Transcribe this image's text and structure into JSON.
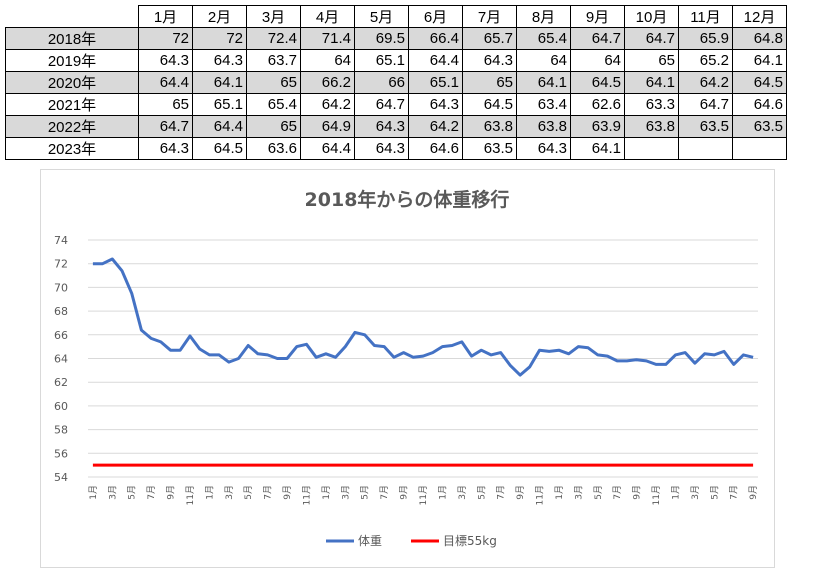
{
  "table": {
    "months": [
      "1月",
      "2月",
      "3月",
      "4月",
      "5月",
      "6月",
      "7月",
      "8月",
      "9月",
      "10月",
      "11月",
      "12月"
    ],
    "rows": [
      {
        "year": "2018年",
        "values": [
          "72",
          "72",
          "72.4",
          "71.4",
          "69.5",
          "66.4",
          "65.7",
          "65.4",
          "64.7",
          "64.7",
          "65.9",
          "64.8"
        ]
      },
      {
        "year": "2019年",
        "values": [
          "64.3",
          "64.3",
          "63.7",
          "64",
          "65.1",
          "64.4",
          "64.3",
          "64",
          "64",
          "65",
          "65.2",
          "64.1"
        ]
      },
      {
        "year": "2020年",
        "values": [
          "64.4",
          "64.1",
          "65",
          "66.2",
          "66",
          "65.1",
          "65",
          "64.1",
          "64.5",
          "64.1",
          "64.2",
          "64.5"
        ]
      },
      {
        "year": "2021年",
        "values": [
          "65",
          "65.1",
          "65.4",
          "64.2",
          "64.7",
          "64.3",
          "64.5",
          "63.4",
          "62.6",
          "63.3",
          "64.7",
          "64.6"
        ]
      },
      {
        "year": "2022年",
        "values": [
          "64.7",
          "64.4",
          "65",
          "64.9",
          "64.3",
          "64.2",
          "63.8",
          "63.8",
          "63.9",
          "63.8",
          "63.5",
          "63.5"
        ]
      },
      {
        "year": "2023年",
        "values": [
          "64.3",
          "64.5",
          "63.6",
          "64.4",
          "64.3",
          "64.6",
          "63.5",
          "64.3",
          "64.1",
          "",
          "",
          ""
        ]
      }
    ]
  },
  "chart_data": {
    "type": "line",
    "title": "2018年からの体重移行",
    "ylim": [
      54,
      74
    ],
    "yticks": [
      54,
      56,
      58,
      60,
      62,
      64,
      66,
      68,
      70,
      72,
      74
    ],
    "grid": true,
    "legend_position": "bottom",
    "x": [
      "1月",
      "2月",
      "3月",
      "4月",
      "5月",
      "6月",
      "7月",
      "8月",
      "9月",
      "10月",
      "11月",
      "12月",
      "1月",
      "2月",
      "3月",
      "4月",
      "5月",
      "6月",
      "7月",
      "8月",
      "9月",
      "10月",
      "11月",
      "12月",
      "1月",
      "2月",
      "3月",
      "4月",
      "5月",
      "6月",
      "7月",
      "8月",
      "9月",
      "10月",
      "11月",
      "12月",
      "1月",
      "2月",
      "3月",
      "4月",
      "5月",
      "6月",
      "7月",
      "8月",
      "9月",
      "10月",
      "11月",
      "12月",
      "1月",
      "2月",
      "3月",
      "4月",
      "5月",
      "6月",
      "7月",
      "8月",
      "9月",
      "10月",
      "11月",
      "12月",
      "1月",
      "2月",
      "3月",
      "4月",
      "5月",
      "6月",
      "7月",
      "8月",
      "9月"
    ],
    "series": [
      {
        "name": "体重",
        "color": "#4472c4",
        "values": [
          72,
          72,
          72.4,
          71.4,
          69.5,
          66.4,
          65.7,
          65.4,
          64.7,
          64.7,
          65.9,
          64.8,
          64.3,
          64.3,
          63.7,
          64,
          65.1,
          64.4,
          64.3,
          64,
          64,
          65,
          65.2,
          64.1,
          64.4,
          64.1,
          65,
          66.2,
          66,
          65.1,
          65,
          64.1,
          64.5,
          64.1,
          64.2,
          64.5,
          65,
          65.1,
          65.4,
          64.2,
          64.7,
          64.3,
          64.5,
          63.4,
          62.6,
          63.3,
          64.7,
          64.6,
          64.7,
          64.4,
          65,
          64.9,
          64.3,
          64.2,
          63.8,
          63.8,
          63.9,
          63.8,
          63.5,
          63.5,
          64.3,
          64.5,
          63.6,
          64.4,
          64.3,
          64.6,
          63.5,
          64.3,
          64.1
        ]
      },
      {
        "name": "目標55kg",
        "color": "#ff0000",
        "values": [
          55,
          55,
          55,
          55,
          55,
          55,
          55,
          55,
          55,
          55,
          55,
          55,
          55,
          55,
          55,
          55,
          55,
          55,
          55,
          55,
          55,
          55,
          55,
          55,
          55,
          55,
          55,
          55,
          55,
          55,
          55,
          55,
          55,
          55,
          55,
          55,
          55,
          55,
          55,
          55,
          55,
          55,
          55,
          55,
          55,
          55,
          55,
          55,
          55,
          55,
          55,
          55,
          55,
          55,
          55,
          55,
          55,
          55,
          55,
          55,
          55,
          55,
          55,
          55,
          55,
          55,
          55,
          55,
          55
        ]
      }
    ]
  }
}
